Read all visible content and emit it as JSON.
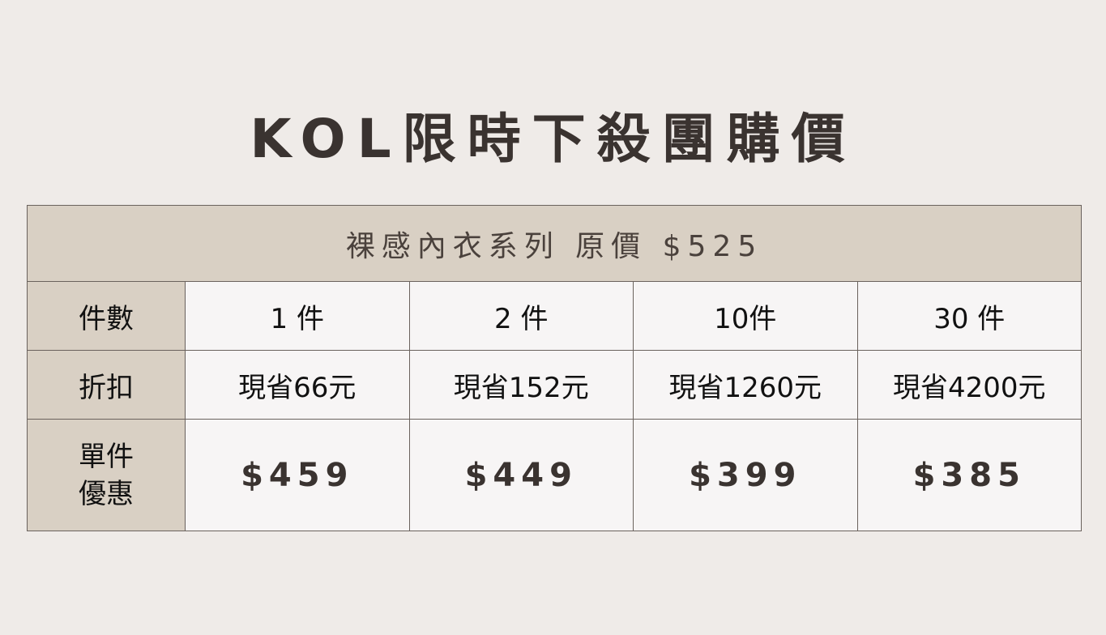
{
  "title": "KOL限時下殺團購價",
  "table": {
    "header": "裸感內衣系列 原價 $525",
    "rows": [
      {
        "label": "件數",
        "cells": [
          "1 件",
          "2 件",
          "10件",
          "30  件"
        ]
      },
      {
        "label": "折扣",
        "cells": [
          "現省66元",
          "現省152元",
          "現省1260元",
          "現省4200元"
        ]
      },
      {
        "label_line1": "單件",
        "label_line2": "優惠",
        "cells": [
          "$459",
          "$449",
          "$399",
          "$385"
        ]
      }
    ]
  }
}
